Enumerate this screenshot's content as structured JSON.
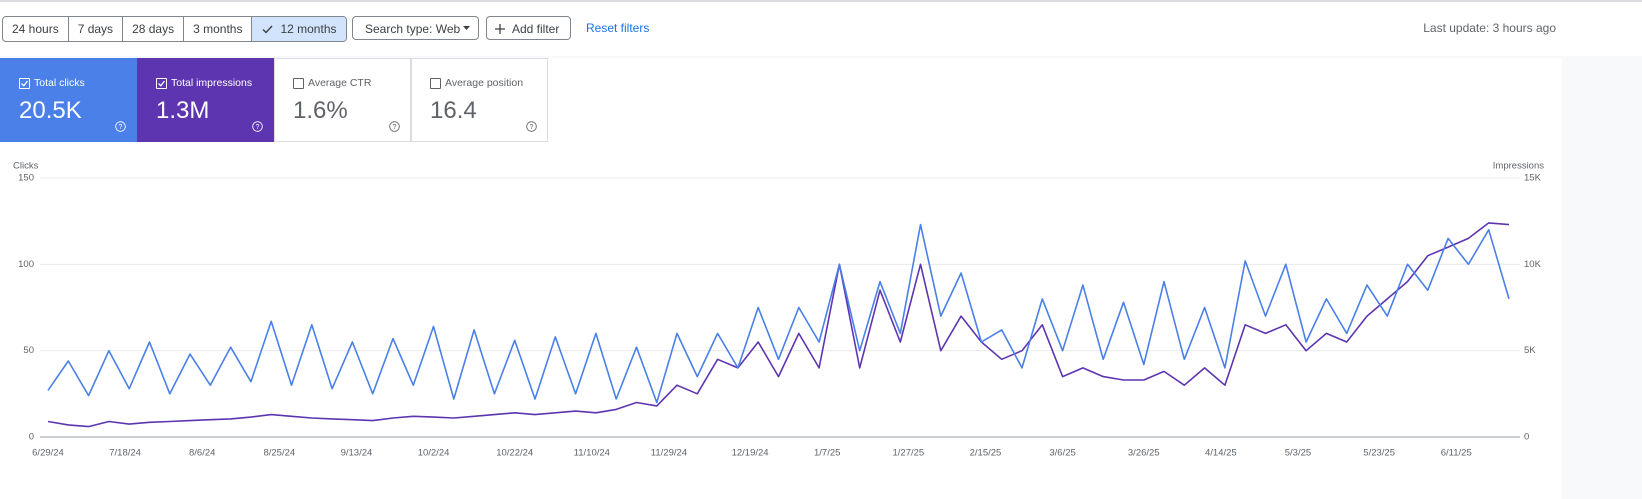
{
  "header": {
    "ranges": [
      "24 hours",
      "7 days",
      "28 days",
      "3 months",
      "12 months"
    ],
    "selected_range": 4,
    "search_type": "Search type: Web",
    "add_filter": "Add filter",
    "reset_filters": "Reset filters",
    "last_update": "Last update: 3 hours ago"
  },
  "metrics": [
    {
      "label": "Total clicks",
      "value": "20.5K",
      "checked": true,
      "color": "#4a80e8"
    },
    {
      "label": "Total impressions",
      "value": "1.3M",
      "checked": true,
      "color": "#5e35b1"
    },
    {
      "label": "Average CTR",
      "value": "1.6%",
      "checked": false
    },
    {
      "label": "Average position",
      "value": "16.4",
      "checked": false
    }
  ],
  "chart_data": {
    "type": "line",
    "y_label": "Clicks",
    "y2_label": "Impressions",
    "x": [
      "6/29/24",
      "7/4/24",
      "7/9/24",
      "7/14/24",
      "7/19/24",
      "7/24/24",
      "7/29/24",
      "8/3/24",
      "8/8/24",
      "8/13/24",
      "8/18/24",
      "8/23/24",
      "8/28/24",
      "9/2/24",
      "9/7/24",
      "9/12/24",
      "9/17/24",
      "9/22/24",
      "9/27/24",
      "10/2/24",
      "10/7/24",
      "10/12/24",
      "10/17/24",
      "10/22/24",
      "10/27/24",
      "11/1/24",
      "11/6/24",
      "11/11/24",
      "11/16/24",
      "11/21/24",
      "11/26/24",
      "12/1/24",
      "12/6/24",
      "12/11/24",
      "12/16/24",
      "12/21/24",
      "12/26/24",
      "12/31/24",
      "1/5/25",
      "1/10/25",
      "1/15/25",
      "1/20/25",
      "1/25/25",
      "1/30/25",
      "2/4/25",
      "2/9/25",
      "2/14/25",
      "2/19/25",
      "2/24/25",
      "3/1/25",
      "3/6/25",
      "3/11/25",
      "3/16/25",
      "3/21/25",
      "3/26/25",
      "3/31/25",
      "4/5/25",
      "4/10/25",
      "4/15/25",
      "4/20/25",
      "4/25/25",
      "4/30/25",
      "5/5/25",
      "5/10/25",
      "5/15/25",
      "5/20/25",
      "5/25/25",
      "5/30/25",
      "6/4/25",
      "6/9/25",
      "6/14/25",
      "6/19/25",
      "6/24/25"
    ],
    "series": [
      {
        "name": "Clicks",
        "color": "#4a80e8",
        "values": [
          27,
          44,
          24,
          50,
          28,
          55,
          25,
          48,
          30,
          52,
          32,
          67,
          30,
          65,
          28,
          55,
          25,
          57,
          30,
          64,
          22,
          62,
          25,
          56,
          22,
          58,
          25,
          60,
          22,
          52,
          20,
          60,
          35,
          60,
          40,
          75,
          45,
          75,
          55,
          100,
          50,
          90,
          60,
          123,
          70,
          95,
          55,
          62,
          40,
          80,
          50,
          88,
          45,
          78,
          42,
          90,
          45,
          75,
          40,
          102,
          70,
          100,
          55,
          80,
          60,
          88,
          70,
          100,
          85,
          115,
          100,
          120,
          80
        ]
      },
      {
        "name": "Impressions",
        "color": "#5e35b1",
        "axis": "y2",
        "values": [
          900,
          700,
          600,
          900,
          750,
          850,
          900,
          950,
          1000,
          1050,
          1150,
          1300,
          1200,
          1100,
          1050,
          1000,
          950,
          1100,
          1200,
          1150,
          1100,
          1200,
          1300,
          1400,
          1300,
          1400,
          1500,
          1400,
          1600,
          2000,
          1800,
          3000,
          2500,
          4500,
          4000,
          5500,
          3500,
          6000,
          4000,
          10000,
          4000,
          8500,
          5500,
          10000,
          5000,
          7000,
          5500,
          4500,
          5000,
          6500,
          3500,
          4000,
          3500,
          3300,
          3300,
          3800,
          3000,
          4000,
          3000,
          6500,
          6000,
          6500,
          5000,
          6000,
          5500,
          7000,
          8000,
          9000,
          10500,
          11000,
          11500,
          12400,
          12300
        ]
      }
    ],
    "xticks": [
      "6/29/24",
      "7/18/24",
      "8/6/24",
      "8/25/24",
      "9/13/24",
      "10/2/24",
      "10/22/24",
      "11/10/24",
      "11/29/24",
      "12/19/24",
      "1/7/25",
      "1/27/25",
      "2/15/25",
      "3/6/25",
      "3/26/25",
      "4/14/25",
      "5/3/25",
      "5/23/25",
      "6/11/25"
    ],
    "ylim": [
      0,
      150
    ],
    "yticks": [
      0,
      50,
      100,
      150
    ],
    "y2lim": [
      0,
      15000
    ],
    "y2ticks": [
      0,
      {
        "value": 5000,
        "label": "5K"
      },
      {
        "value": 10000,
        "label": "10K"
      },
      {
        "value": 15000,
        "label": "15K"
      }
    ],
    "grid": true
  }
}
